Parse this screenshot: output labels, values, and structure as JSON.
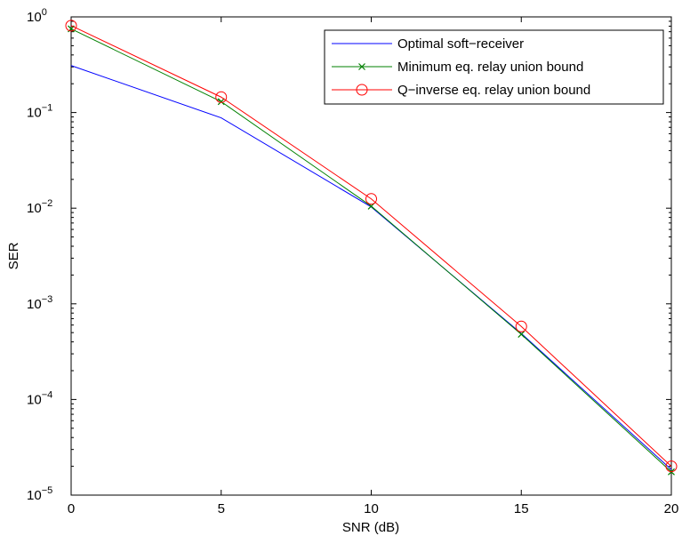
{
  "chart_data": {
    "type": "line",
    "xlabel": "SNR (dB)",
    "ylabel": "SER",
    "x_ticks": [
      0,
      5,
      10,
      15,
      20
    ],
    "x_tick_labels": [
      "0",
      "5",
      "10",
      "15",
      "20"
    ],
    "xlim": [
      0,
      20
    ],
    "y_scale": "log",
    "ylim": [
      1e-05,
      1
    ],
    "y_ticks": [
      1,
      0.1,
      0.01,
      0.001,
      0.0001,
      1e-05
    ],
    "y_tick_labels": [
      {
        "base": "10",
        "exp": "0"
      },
      {
        "base": "10",
        "exp": "−1"
      },
      {
        "base": "10",
        "exp": "−2"
      },
      {
        "base": "10",
        "exp": "−3"
      },
      {
        "base": "10",
        "exp": "−4"
      },
      {
        "base": "10",
        "exp": "−5"
      }
    ],
    "grid": false,
    "legend_position": "top-right",
    "x": [
      0,
      5,
      10,
      15,
      20
    ],
    "series": [
      {
        "name": "Optimal soft−receiver",
        "color": "#0000ff",
        "marker": "none",
        "values": [
          0.31,
          0.088,
          0.0103,
          0.00049,
          1.85e-05
        ]
      },
      {
        "name": "Minimum eq. relay union bound",
        "color": "#008000",
        "marker": "x",
        "values": [
          0.75,
          0.13,
          0.0105,
          0.00048,
          1.75e-05
        ]
      },
      {
        "name": "Q−inverse eq. relay union bound",
        "color": "#ff0000",
        "marker": "circle",
        "values": [
          0.81,
          0.145,
          0.0125,
          0.00058,
          2e-05
        ]
      }
    ]
  }
}
